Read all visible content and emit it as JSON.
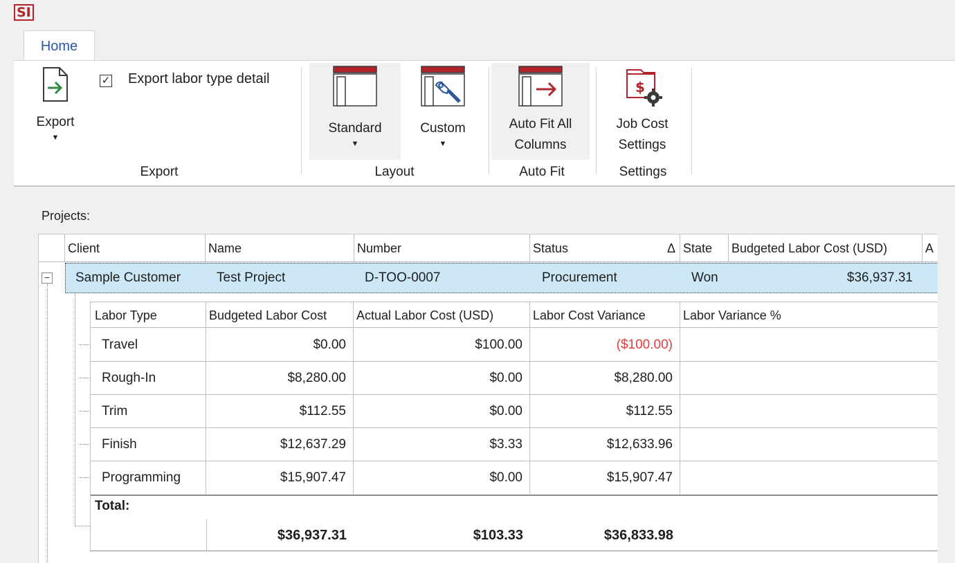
{
  "app": {
    "logo": "SI"
  },
  "ribbon": {
    "tab": "Home",
    "export": {
      "button_label": "Export",
      "checkbox_label": "Export labor type detail",
      "checkbox_checked": true,
      "group_label": "Export"
    },
    "layout": {
      "standard_label": "Standard",
      "custom_label": "Custom",
      "group_label": "Layout"
    },
    "autofit": {
      "button_label_line1": "Auto Fit All",
      "button_label_line2": "Columns",
      "group_label": "Auto Fit"
    },
    "settings": {
      "button_label_line1": "Job Cost",
      "button_label_line2": "Settings",
      "group_label": "Settings"
    }
  },
  "projects": {
    "label": "Projects:",
    "columns": [
      "Client",
      "Name",
      "Number",
      "Status",
      "State",
      "Budgeted Labor Cost (USD)",
      "A"
    ],
    "status_sort_glyph": "Δ",
    "rows": [
      {
        "client": "Sample Customer",
        "name": "Test Project",
        "number": "D-TOO-0007",
        "status": "Procurement",
        "state": "Won",
        "budgeted": "$36,937.31"
      }
    ]
  },
  "labor": {
    "columns": [
      "Labor Type",
      "Budgeted Labor Cost",
      "Actual Labor Cost (USD)",
      "Labor Cost Variance",
      "Labor Variance %"
    ],
    "rows": [
      {
        "type": "Travel",
        "budgeted": "$0.00",
        "actual": "$100.00",
        "variance": "($100.00)",
        "pct": ""
      },
      {
        "type": "Rough-In",
        "budgeted": "$8,280.00",
        "actual": "$0.00",
        "variance": "$8,280.00",
        "pct": ""
      },
      {
        "type": "Trim",
        "budgeted": "$112.55",
        "actual": "$0.00",
        "variance": "$112.55",
        "pct": ""
      },
      {
        "type": "Finish",
        "budgeted": "$12,637.29",
        "actual": "$3.33",
        "variance": "$12,633.96",
        "pct": ""
      },
      {
        "type": "Programming",
        "budgeted": "$15,907.47",
        "actual": "$0.00",
        "variance": "$15,907.47",
        "pct": ""
      }
    ],
    "total": {
      "label": "Total:",
      "budgeted": "$36,937.31",
      "actual": "$103.33",
      "variance": "$36,833.98"
    }
  },
  "colors": {
    "accent_red": "#b1242a",
    "selection": "#cce8f7",
    "negative": "#e03c3c",
    "tab_text": "#2b579a"
  }
}
